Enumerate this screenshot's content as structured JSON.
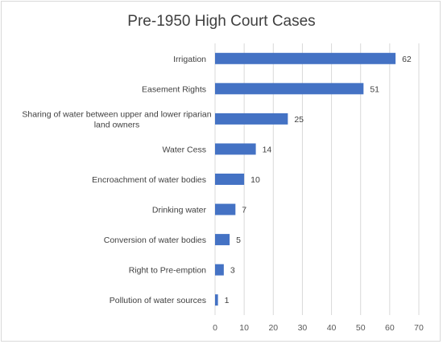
{
  "chart_data": {
    "type": "bar",
    "orientation": "horizontal",
    "title": "Pre-1950 High Court Cases",
    "xlabel": "",
    "ylabel": "",
    "categories": [
      "Irrigation",
      "Easement Rights",
      "Sharing of water between upper and lower riparian land owners",
      "Water Cess",
      "Encroachment of water bodies",
      "Drinking water",
      "Conversion of water bodies",
      "Right to Pre-emption",
      "Pollution of water sources"
    ],
    "category_lines": [
      [
        "Irrigation"
      ],
      [
        "Easement Rights"
      ],
      [
        "Sharing of water between upper and lower riparian",
        "land owners"
      ],
      [
        "Water Cess"
      ],
      [
        "Encroachment of water bodies"
      ],
      [
        "Drinking water"
      ],
      [
        "Conversion of water bodies"
      ],
      [
        "Right to Pre-emption"
      ],
      [
        "Pollution of water sources"
      ]
    ],
    "values": [
      62,
      51,
      25,
      14,
      10,
      7,
      5,
      3,
      1
    ],
    "data_labels": [
      "62",
      "51",
      "25",
      "14",
      "10",
      "7",
      "5",
      "3",
      "1"
    ],
    "xlim": [
      0,
      70
    ],
    "xticks": [
      0,
      10,
      20,
      30,
      40,
      50,
      60,
      70
    ],
    "grid": "vertical",
    "legend": "none",
    "bar_color": "#4472c4",
    "grid_color": "#d9d9d9",
    "text_color": "#404040"
  }
}
